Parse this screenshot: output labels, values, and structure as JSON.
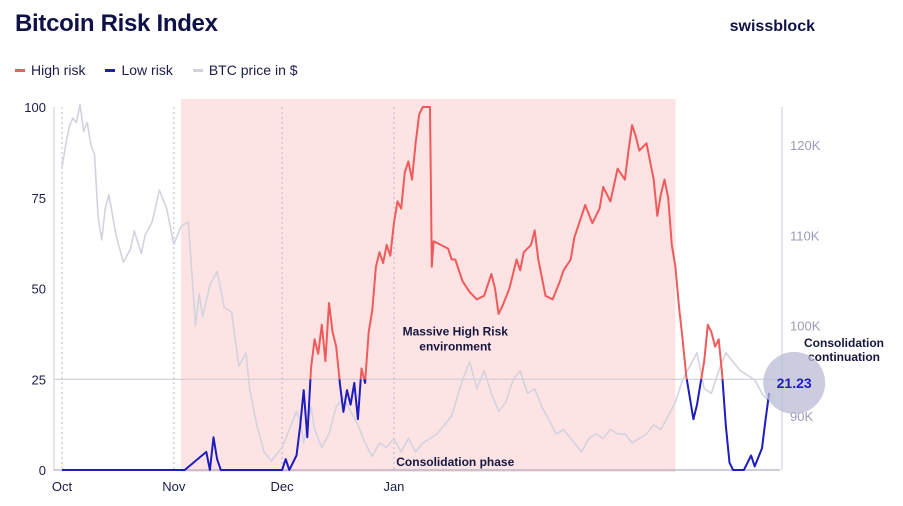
{
  "header": {
    "title": "Bitcoin Risk Index",
    "brand": "swissblock"
  },
  "colors": {
    "high_risk": "#ef5b5b",
    "low_risk": "#1d1dbd",
    "btc_price": "#d2d3df",
    "high_risk_zone": "#fde3e3",
    "current_value_bubble": "#b9bbd6"
  },
  "chart_data": {
    "type": "line",
    "title": "Bitcoin Risk Index",
    "legend": {
      "placement": "top-left",
      "entries": [
        "High risk",
        "Low risk",
        "BTC price in $"
      ]
    },
    "x_ticks": [
      "Oct",
      "Nov",
      "Dec",
      "Jan"
    ],
    "y_left": {
      "range": [
        0,
        100
      ],
      "ticks": [
        "0",
        "25",
        "50",
        "75",
        "100"
      ]
    },
    "y_right": {
      "range": [
        84000,
        125000
      ],
      "ticks": [
        "90K",
        "100K",
        "110K",
        "120K"
      ]
    },
    "threshold": 25,
    "grid": "vertical dotted lines at month starts",
    "risk_index": [
      [
        1,
        0
      ],
      [
        20,
        0
      ],
      [
        35,
        0
      ],
      [
        41,
        5
      ],
      [
        42,
        0
      ],
      [
        43,
        9
      ],
      [
        44,
        3
      ],
      [
        45,
        0
      ],
      [
        62,
        0
      ],
      [
        63,
        3
      ],
      [
        64,
        0
      ],
      [
        66,
        4
      ],
      [
        67,
        12
      ],
      [
        68,
        22
      ],
      [
        69,
        9
      ],
      [
        70,
        28
      ],
      [
        71,
        36
      ],
      [
        72,
        32
      ],
      [
        73,
        40
      ],
      [
        74,
        30
      ],
      [
        75,
        46
      ],
      [
        76,
        38
      ],
      [
        77,
        34
      ],
      [
        78,
        24
      ],
      [
        79,
        16
      ],
      [
        80,
        22
      ],
      [
        81,
        18
      ],
      [
        82,
        24
      ],
      [
        83,
        14
      ],
      [
        84,
        28
      ],
      [
        85,
        24
      ],
      [
        86,
        38
      ],
      [
        87,
        44
      ],
      [
        88,
        56
      ],
      [
        89,
        60
      ],
      [
        90,
        57
      ],
      [
        91,
        62
      ],
      [
        92,
        59
      ],
      [
        93,
        68
      ],
      [
        94,
        74
      ],
      [
        95,
        72
      ],
      [
        96,
        82
      ],
      [
        97,
        85
      ],
      [
        98,
        80
      ],
      [
        99,
        90
      ],
      [
        100,
        98
      ],
      [
        101,
        100
      ],
      [
        103,
        100
      ],
      [
        103.5,
        56
      ],
      [
        104,
        63
      ],
      [
        106,
        62
      ],
      [
        108,
        61
      ],
      [
        109,
        58
      ],
      [
        110,
        58
      ],
      [
        112,
        52
      ],
      [
        114,
        49
      ],
      [
        116,
        47
      ],
      [
        118,
        48
      ],
      [
        120,
        54
      ],
      [
        121,
        50
      ],
      [
        122,
        43
      ],
      [
        123,
        45
      ],
      [
        125,
        50
      ],
      [
        127,
        58
      ],
      [
        128,
        55
      ],
      [
        129,
        60
      ],
      [
        131,
        62
      ],
      [
        132,
        66
      ],
      [
        133,
        58
      ],
      [
        134,
        53
      ],
      [
        135,
        48
      ],
      [
        137,
        47
      ],
      [
        139,
        52
      ],
      [
        140,
        55
      ],
      [
        142,
        58
      ],
      [
        143,
        64
      ],
      [
        145,
        70
      ],
      [
        146,
        73
      ],
      [
        148,
        68
      ],
      [
        150,
        72
      ],
      [
        151,
        78
      ],
      [
        153,
        74
      ],
      [
        155,
        83
      ],
      [
        157,
        80
      ],
      [
        158,
        88
      ],
      [
        159,
        95
      ],
      [
        160,
        92
      ],
      [
        161,
        88
      ],
      [
        163,
        90
      ],
      [
        164,
        85
      ],
      [
        165,
        80
      ],
      [
        166,
        70
      ],
      [
        167,
        76
      ],
      [
        168,
        80
      ],
      [
        169,
        75
      ],
      [
        170,
        62
      ],
      [
        171,
        56
      ],
      [
        172,
        45
      ],
      [
        173,
        36
      ],
      [
        174,
        26
      ],
      [
        175,
        20
      ],
      [
        176,
        14
      ],
      [
        177,
        18
      ],
      [
        178,
        24
      ],
      [
        179,
        30
      ],
      [
        180,
        40
      ],
      [
        181,
        38
      ],
      [
        182,
        34
      ],
      [
        183,
        36
      ],
      [
        184,
        26
      ],
      [
        185,
        12
      ],
      [
        186,
        2
      ],
      [
        187,
        0
      ],
      [
        190,
        0
      ],
      [
        192,
        4
      ],
      [
        193,
        1
      ],
      [
        195,
        6
      ],
      [
        196,
        14
      ],
      [
        197,
        21.23
      ]
    ],
    "btc_price": [
      [
        1,
        117500
      ],
      [
        2,
        120000
      ],
      [
        3,
        122000
      ],
      [
        4,
        123000
      ],
      [
        5,
        122500
      ],
      [
        6,
        124500
      ],
      [
        7,
        121500
      ],
      [
        8,
        122500
      ],
      [
        9,
        120000
      ],
      [
        10,
        119000
      ],
      [
        11,
        112000
      ],
      [
        12,
        109500
      ],
      [
        13,
        113000
      ],
      [
        14,
        114500
      ],
      [
        16,
        110000
      ],
      [
        18,
        107000
      ],
      [
        20,
        108500
      ],
      [
        21,
        110500
      ],
      [
        23,
        108000
      ],
      [
        24,
        110000
      ],
      [
        26,
        111500
      ],
      [
        28,
        115000
      ],
      [
        30,
        113000
      ],
      [
        32,
        109000
      ],
      [
        34,
        111000
      ],
      [
        36,
        111500
      ],
      [
        38,
        100000
      ],
      [
        39,
        103500
      ],
      [
        40,
        101000
      ],
      [
        42,
        104500
      ],
      [
        44,
        106000
      ],
      [
        46,
        102000
      ],
      [
        48,
        101500
      ],
      [
        50,
        95500
      ],
      [
        52,
        97000
      ],
      [
        53,
        93000
      ],
      [
        55,
        89000
      ],
      [
        57,
        86000
      ],
      [
        59,
        85000
      ],
      [
        62,
        86500
      ],
      [
        64,
        88500
      ],
      [
        66,
        90500
      ],
      [
        67,
        89500
      ],
      [
        68,
        87000
      ],
      [
        70,
        91000
      ],
      [
        71,
        88500
      ],
      [
        73,
        86500
      ],
      [
        75,
        88000
      ],
      [
        77,
        91000
      ],
      [
        79,
        92000
      ],
      [
        81,
        90500
      ],
      [
        83,
        89000
      ],
      [
        85,
        87000
      ],
      [
        87,
        85500
      ],
      [
        89,
        87000
      ],
      [
        91,
        86500
      ],
      [
        93,
        87500
      ],
      [
        95,
        86000
      ],
      [
        97,
        87500
      ],
      [
        99,
        86000
      ],
      [
        101,
        87000
      ],
      [
        103,
        87500
      ],
      [
        105,
        88000
      ],
      [
        107,
        89000
      ],
      [
        109,
        90000
      ],
      [
        112,
        94000
      ],
      [
        114,
        96000
      ],
      [
        116,
        93000
      ],
      [
        118,
        95000
      ],
      [
        120,
        92500
      ],
      [
        122,
        90500
      ],
      [
        124,
        91500
      ],
      [
        126,
        94000
      ],
      [
        128,
        95000
      ],
      [
        130,
        92500
      ],
      [
        132,
        93000
      ],
      [
        134,
        91000
      ],
      [
        136,
        89500
      ],
      [
        138,
        88000
      ],
      [
        140,
        88500
      ],
      [
        142,
        87500
      ],
      [
        143,
        87000
      ],
      [
        145,
        86000
      ],
      [
        147,
        87500
      ],
      [
        149,
        88000
      ],
      [
        151,
        87500
      ],
      [
        153,
        88500
      ],
      [
        155,
        88000
      ],
      [
        157,
        88000
      ],
      [
        159,
        87000
      ],
      [
        161,
        87500
      ],
      [
        163,
        88000
      ],
      [
        165,
        89000
      ],
      [
        167,
        88500
      ],
      [
        169,
        90000
      ],
      [
        171,
        91500
      ],
      [
        173,
        94000
      ],
      [
        175,
        95500
      ],
      [
        177,
        97000
      ],
      [
        179,
        93000
      ],
      [
        181,
        92500
      ],
      [
        183,
        95000
      ],
      [
        185,
        97000
      ],
      [
        187,
        96000
      ],
      [
        189,
        95000
      ],
      [
        191,
        94500
      ],
      [
        193,
        94000
      ],
      [
        195,
        92500
      ],
      [
        197,
        91500
      ]
    ],
    "x_domain": [
      1,
      200
    ],
    "month_starts": [
      1,
      32,
      62,
      93
    ],
    "high_risk_zone": [
      34,
      171
    ],
    "annotations": [
      {
        "text": "Massive High Risk environment",
        "x": 110,
        "y": 37
      },
      {
        "text": "Consolidation phase",
        "x": 110,
        "y": 2
      },
      {
        "text": "Consolidation continuation",
        "x": 199,
        "y": 37
      }
    ],
    "current_value": {
      "label": "21.23",
      "x": 197,
      "y": 21.23
    }
  }
}
